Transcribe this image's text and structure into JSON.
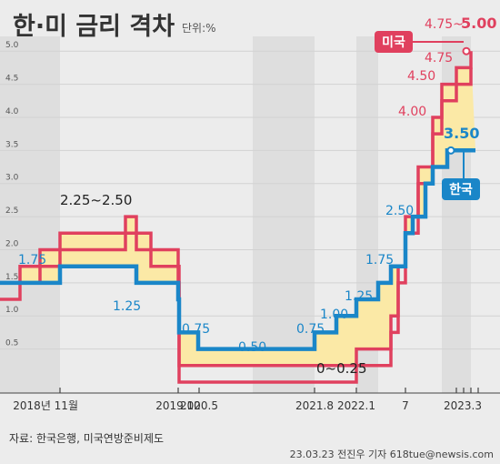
{
  "header": {
    "title": "한·미 금리 격차",
    "unit": "단위:%"
  },
  "footer": {
    "source": "자료: 한국은행, 미국연방준비제도",
    "credit": "23.03.23 전진우 기자 618tue@newsis.com"
  },
  "colors": {
    "us": "#e0405e",
    "korea": "#1a86c8",
    "gap_fill": "#fbe9a6",
    "background": "#ececec",
    "band": "#dedede",
    "title": "#333333"
  },
  "chart_data": {
    "type": "line",
    "step": true,
    "ylim": [
      0,
      5.25
    ],
    "yticks": [
      "0.5",
      "1.0",
      "1.5",
      "2.0",
      "2.5",
      "3.0",
      "3.5",
      "4.0",
      "4.5",
      "5.0"
    ],
    "xticks": [
      "2018년 11월",
      "2019.10",
      "2020.5",
      "2021.8",
      "2022.1",
      "7",
      "2023.3"
    ],
    "grid": true,
    "series": [
      {
        "name": "미국",
        "color": "#e0405e",
        "x": [
          "2017",
          "2018.3",
          "2018.6",
          "2018.9",
          "2018.12",
          "2019.7",
          "2019.9",
          "2019.10",
          "2020.3",
          "2022.3",
          "2022.5",
          "2022.6",
          "2022.7",
          "2022.9",
          "2022.11",
          "2022.12",
          "2023.2",
          "2023.3"
        ],
        "lower": [
          1.25,
          1.5,
          1.75,
          2.0,
          2.25,
          2.0,
          1.75,
          1.5,
          0.0,
          0.25,
          0.75,
          1.5,
          2.25,
          3.0,
          3.75,
          4.25,
          4.5,
          4.75
        ],
        "upper": [
          1.5,
          1.75,
          2.0,
          2.25,
          2.5,
          2.25,
          2.0,
          1.75,
          0.25,
          0.5,
          1.0,
          1.75,
          2.5,
          3.25,
          4.0,
          4.5,
          4.75,
          5.0
        ]
      },
      {
        "name": "한국",
        "color": "#1a86c8",
        "x": [
          "2017",
          "2018.11",
          "2019.7",
          "2019.10",
          "2020.3",
          "2020.5",
          "2021.8",
          "2021.11",
          "2022.1",
          "2022.4",
          "2022.5",
          "2022.7",
          "2022.8",
          "2022.10",
          "2022.11",
          "2023.1"
        ],
        "values": [
          1.5,
          1.75,
          1.5,
          1.25,
          0.75,
          0.5,
          0.75,
          1.0,
          1.25,
          1.5,
          1.75,
          2.25,
          2.5,
          3.0,
          3.25,
          3.5
        ]
      }
    ],
    "annotations": [
      {
        "text": "2.25~2.50",
        "target": "미국"
      },
      {
        "text": "1.75",
        "target": "한국"
      },
      {
        "text": "1.25",
        "target": "한국"
      },
      {
        "text": "0.75",
        "target": "한국"
      },
      {
        "text": "0.50",
        "target": "한국"
      },
      {
        "text": "0.75",
        "target": "한국"
      },
      {
        "text": "1.00",
        "target": "한국"
      },
      {
        "text": "1.25",
        "target": "한국"
      },
      {
        "text": "1.75",
        "target": "한국"
      },
      {
        "text": "2.50",
        "target": "한국"
      },
      {
        "text": "3.50",
        "target": "한국"
      },
      {
        "text": "0~0.25",
        "target": "미국"
      },
      {
        "text": "4.00",
        "target": "미국"
      },
      {
        "text": "4.50",
        "target": "미국"
      },
      {
        "text": "4.75",
        "target": "미국"
      },
      {
        "text": "4.75~",
        "target": "미국"
      },
      {
        "text": "5.00",
        "target": "미국"
      }
    ],
    "legend": [
      "미국",
      "한국"
    ]
  }
}
